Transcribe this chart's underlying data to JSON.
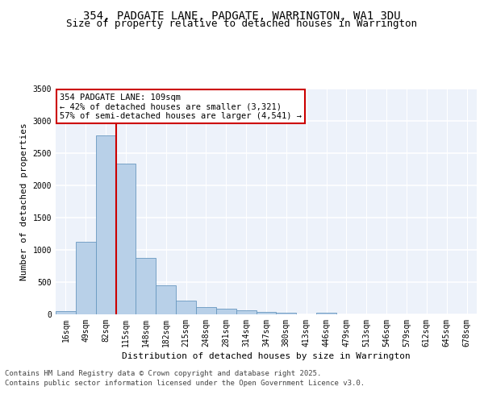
{
  "title_line1": "354, PADGATE LANE, PADGATE, WARRINGTON, WA1 3DU",
  "title_line2": "Size of property relative to detached houses in Warrington",
  "xlabel": "Distribution of detached houses by size in Warrington",
  "ylabel": "Number of detached properties",
  "categories": [
    "16sqm",
    "49sqm",
    "82sqm",
    "115sqm",
    "148sqm",
    "182sqm",
    "215sqm",
    "248sqm",
    "281sqm",
    "314sqm",
    "347sqm",
    "380sqm",
    "413sqm",
    "446sqm",
    "479sqm",
    "513sqm",
    "546sqm",
    "579sqm",
    "612sqm",
    "645sqm",
    "678sqm"
  ],
  "values": [
    55,
    1120,
    2780,
    2340,
    880,
    445,
    210,
    110,
    90,
    60,
    35,
    25,
    0,
    20,
    0,
    0,
    0,
    0,
    0,
    0,
    0
  ],
  "bar_color": "#b8d0e8",
  "bar_edge_color": "#6898c0",
  "vline_x_index": 2.5,
  "vline_color": "#cc0000",
  "annotation_text": "354 PADGATE LANE: 109sqm\n← 42% of detached houses are smaller (3,321)\n57% of semi-detached houses are larger (4,541) →",
  "annotation_box_color": "#cc0000",
  "ylim": [
    0,
    3500
  ],
  "yticks": [
    0,
    500,
    1000,
    1500,
    2000,
    2500,
    3000,
    3500
  ],
  "bg_color": "#edf2fa",
  "grid_color": "#ffffff",
  "footnote_line1": "Contains HM Land Registry data © Crown copyright and database right 2025.",
  "footnote_line2": "Contains public sector information licensed under the Open Government Licence v3.0.",
  "title_fontsize": 10,
  "subtitle_fontsize": 9,
  "axis_label_fontsize": 8,
  "tick_fontsize": 7,
  "annot_fontsize": 7.5,
  "footnote_fontsize": 6.5
}
